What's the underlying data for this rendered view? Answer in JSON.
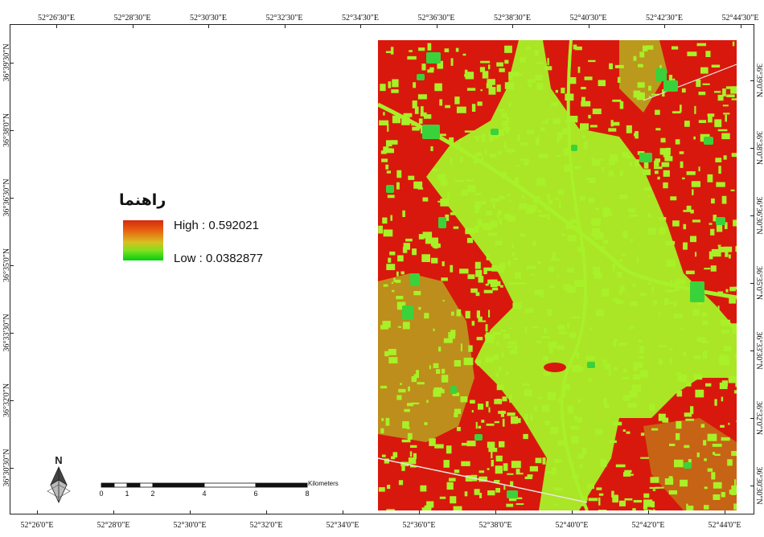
{
  "map": {
    "legend": {
      "title": "راهنما",
      "high_label": "High : 0.592021",
      "low_label": "Low : 0.0382877",
      "high_value": 0.592021,
      "low_value": 0.0382877,
      "ramp_colors": [
        "#d42a10",
        "#e86010",
        "#d8c020",
        "#80e020",
        "#00d010"
      ]
    },
    "classes": {
      "high_color": "#d8180c",
      "low_color": "#a8f028",
      "vegetation_color": "#3ad23a",
      "road_color": "#e8e8e0"
    },
    "top_ticks": [
      "52°26'30\"E",
      "52°28'30\"E",
      "52°30'30\"E",
      "52°32'30\"E",
      "52°34'30\"E",
      "52°36'30\"E",
      "52°38'30\"E",
      "52°40'30\"E",
      "52°42'30\"E",
      "52°44'30\"E"
    ],
    "bottom_ticks": [
      "52°26'0\"E",
      "52°28'0\"E",
      "52°30'0\"E",
      "52°32'0\"E",
      "52°34'0\"E",
      "52°36'0\"E",
      "52°38'0\"E",
      "52°40'0\"E",
      "52°42'0\"E",
      "52°44'0\"E"
    ],
    "left_ticks": [
      "36°39'30\"N",
      "36°38'0\"N",
      "36°36'30\"N",
      "36°35'0\"N",
      "36°33'30\"N",
      "36°32'0\"N",
      "36°30'30\"N"
    ],
    "right_ticks": [
      "36°39'0\"N",
      "36°38'0\"N",
      "36°36'30\"N",
      "36°35'0\"N",
      "36°33'30\"N",
      "36°32'0\"N",
      "36°30'30\"N"
    ],
    "north_label": "N",
    "scalebar": {
      "labels": [
        "0",
        "1",
        "2",
        "4",
        "6",
        "8"
      ],
      "unit": "Kilometers"
    }
  }
}
